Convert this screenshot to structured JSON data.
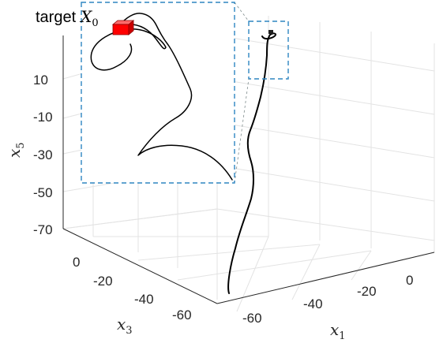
{
  "chart_data": {
    "type": "line",
    "title": "",
    "projection": "3d",
    "axes": {
      "x1": {
        "label_var": "x",
        "label_sub": "1",
        "ticks": [
          "0",
          "-20",
          "-40",
          "-60"
        ]
      },
      "x3": {
        "label_var": "x",
        "label_sub": "3",
        "ticks": [
          "0",
          "-20",
          "-40",
          "-60"
        ]
      },
      "x5": {
        "label_var": "x",
        "label_sub": "5",
        "ticks": [
          "10",
          "-10",
          "-30",
          "-50",
          "-70"
        ]
      }
    },
    "grid": true,
    "series": [
      {
        "values_description_free": true,
        "x": [
          -40,
          -38,
          -34,
          -30,
          -26,
          -22,
          -18,
          -14,
          -10,
          -7,
          -5,
          -3,
          -2,
          -1.5
        ],
        "y": [
          -20,
          -18,
          -16,
          -14,
          -12,
          -10,
          -8,
          -6,
          -4,
          -3,
          -2,
          -1,
          -0.5,
          0
        ],
        "z": [
          -75,
          -60,
          -45,
          -35,
          -25,
          -18,
          -12,
          -4,
          2,
          8,
          12,
          15,
          17,
          18
        ]
      }
    ],
    "annotations": {
      "target_label": "target",
      "target_var": "X",
      "target_sub": "0",
      "target_color": "#ff0000",
      "zoom_box_color": "#2e86c1"
    }
  }
}
